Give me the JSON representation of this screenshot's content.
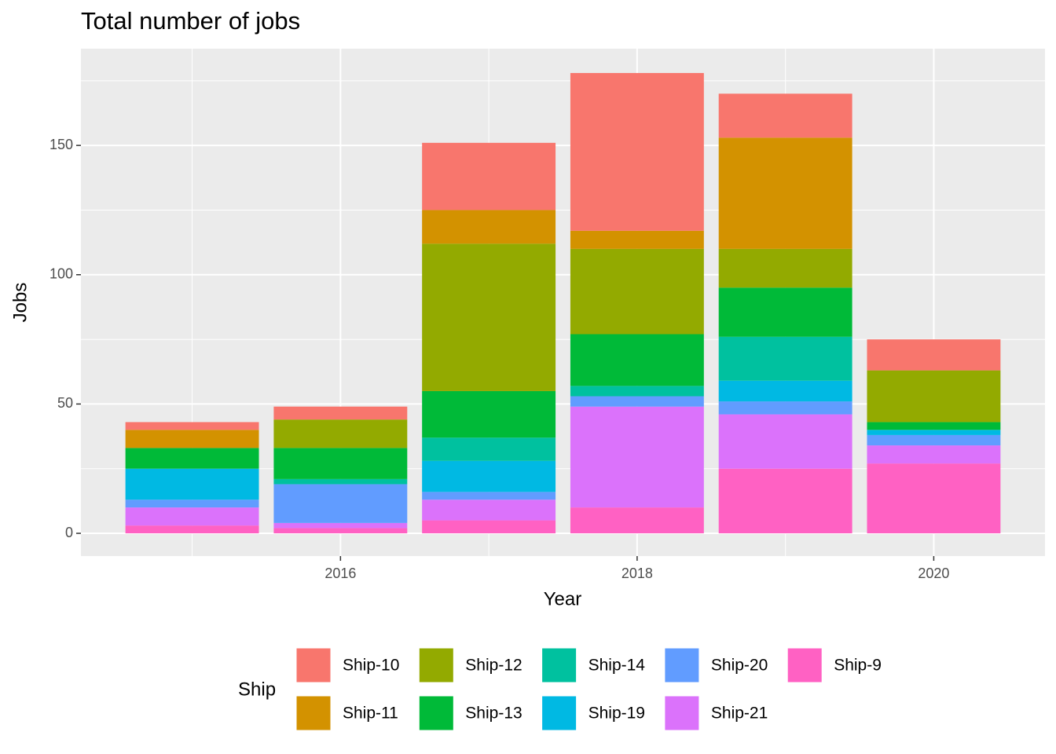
{
  "chart_data": {
    "type": "stacked_bar",
    "title": "Total number of jobs",
    "x_label": "Year",
    "y_label": "Jobs",
    "legend_title": "Ship",
    "x": [
      2015,
      2016,
      2017,
      2018,
      2019,
      2020
    ],
    "xlim": [
      2014.25,
      2020.75
    ],
    "xticks": [
      2016,
      2018,
      2020
    ],
    "xminor": [
      2015,
      2017,
      2019
    ],
    "ylim": [
      -8.8,
      187.4
    ],
    "yticks": [
      0,
      50,
      100,
      150
    ],
    "yminor": [
      25,
      75,
      125,
      175
    ],
    "grid": true,
    "legend_position": "bottom",
    "series": [
      {
        "name": "Ship-10",
        "color": "#F8766D",
        "values": [
          3,
          5,
          26,
          61,
          17,
          12
        ]
      },
      {
        "name": "Ship-11",
        "color": "#D39200",
        "values": [
          7,
          0,
          13,
          7,
          43,
          0
        ]
      },
      {
        "name": "Ship-12",
        "color": "#93AA00",
        "values": [
          0,
          11,
          57,
          33,
          15,
          20
        ]
      },
      {
        "name": "Ship-13",
        "color": "#00BA38",
        "values": [
          8,
          12,
          18,
          20,
          19,
          3
        ]
      },
      {
        "name": "Ship-14",
        "color": "#00C19F",
        "values": [
          0,
          2,
          9,
          4,
          17,
          0
        ]
      },
      {
        "name": "Ship-19",
        "color": "#00B9E3",
        "values": [
          12,
          0,
          12,
          0,
          8,
          2
        ]
      },
      {
        "name": "Ship-20",
        "color": "#619CFF",
        "values": [
          3,
          15,
          3,
          4,
          5,
          4
        ]
      },
      {
        "name": "Ship-21",
        "color": "#DB72FB",
        "values": [
          7,
          2,
          8,
          39,
          21,
          7
        ]
      },
      {
        "name": "Ship-9",
        "color": "#FF61C3",
        "values": [
          3,
          2,
          5,
          10,
          25,
          27
        ]
      }
    ]
  }
}
